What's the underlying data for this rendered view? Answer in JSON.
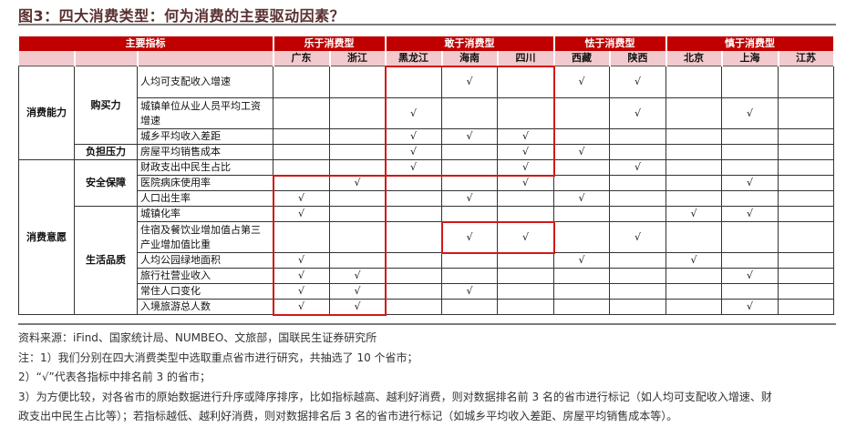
{
  "title": "图3：四大消费类型：何为消费的主要驱动因素？",
  "colors": {
    "header_red": "#c00000",
    "subheader_pink": "#f2c9cd",
    "highlight_box": "#d01818"
  },
  "table": {
    "header_main": "主要指标",
    "groups": [
      {
        "label": "乐于消费型",
        "cities": [
          "广东",
          "浙江"
        ]
      },
      {
        "label": "敢于消费型",
        "cities": [
          "黑龙江",
          "海南",
          "四川"
        ]
      },
      {
        "label": "怯于消费型",
        "cities": [
          "西藏",
          "陕西"
        ]
      },
      {
        "label": "慎于消费型",
        "cities": [
          "北京",
          "上海",
          "江苏"
        ]
      }
    ],
    "check_mark": "√",
    "level1": [
      {
        "label": "消费能力",
        "rows": 4
      },
      {
        "label": "消费意愿",
        "rows": 9
      }
    ],
    "level2": [
      {
        "label": "购买力",
        "rows": 3
      },
      {
        "label": "负担压力",
        "rows": 1
      },
      {
        "label": "安全保障",
        "rows": 3
      },
      {
        "label": "生活品质",
        "rows": 6
      }
    ],
    "rows": [
      {
        "indicator": "人均可支配收入增速",
        "checked": [
          "海南",
          "西藏",
          "陕西"
        ]
      },
      {
        "indicator": "城镇单位从业人员平均工资增速",
        "checked": [
          "黑龙江",
          "陕西",
          "上海"
        ]
      },
      {
        "indicator": "城乡平均收入差距",
        "checked": [
          "黑龙江",
          "海南",
          "四川"
        ]
      },
      {
        "indicator": "房屋平均销售成本",
        "checked": [
          "黑龙江",
          "四川",
          "西藏"
        ]
      },
      {
        "indicator": "财政支出中民生占比",
        "checked": [
          "黑龙江",
          "四川",
          "陕西"
        ]
      },
      {
        "indicator": "医院病床使用率",
        "checked": [
          "浙江",
          "四川",
          "上海"
        ]
      },
      {
        "indicator": "人口出生率",
        "checked": [
          "广东",
          "海南",
          "西藏"
        ]
      },
      {
        "indicator": "城镇化率",
        "checked": [
          "广东",
          "北京",
          "上海"
        ]
      },
      {
        "indicator": "住宿及餐饮业增加值占第三产业增加值比重",
        "checked": [
          "海南",
          "四川",
          "陕西"
        ]
      },
      {
        "indicator": "人均公园绿地面积",
        "checked": [
          "广东",
          "西藏",
          "北京"
        ]
      },
      {
        "indicator": "旅行社营业收入",
        "checked": [
          "广东",
          "浙江",
          "上海"
        ]
      },
      {
        "indicator": "常住人口变化",
        "checked": [
          "广东",
          "浙江",
          "海南"
        ]
      },
      {
        "indicator": "入境旅游总人数",
        "checked": [
          "广东",
          "浙江",
          "上海"
        ]
      }
    ],
    "highlight_boxes": [
      {
        "rows": [
          0,
          4
        ],
        "cities": [
          "黑龙江",
          "四川"
        ]
      },
      {
        "rows": [
          5,
          12
        ],
        "cities": [
          "广东",
          "浙江"
        ]
      },
      {
        "rows": [
          8,
          8
        ],
        "cities": [
          "海南",
          "四川"
        ]
      }
    ]
  },
  "notes": {
    "source": "资料来源：iFind、国家统计局、NUMBEO、文旅部，国联民生证券研究所",
    "note1": "注：1）我们分别在四大消费类型中选取重点省市进行研究，共抽选了 10 个省市；",
    "note2": "2）“√”代表各指标中排名前 3 的省市；",
    "note3a": "3）为方便比较，对各省市的原始数据进行升序或降序排序，比如指标越高、越利好消费，则对数据排名前 3 名的省市进行标记（如人均可支配收入增速、财",
    "note3b": "政支出中民生占比等）；若指标越低、越利好消费，则对数据排名后 3 名的省市进行标记（如城乡平均收入差距、房屋平均销售成本等）。"
  }
}
